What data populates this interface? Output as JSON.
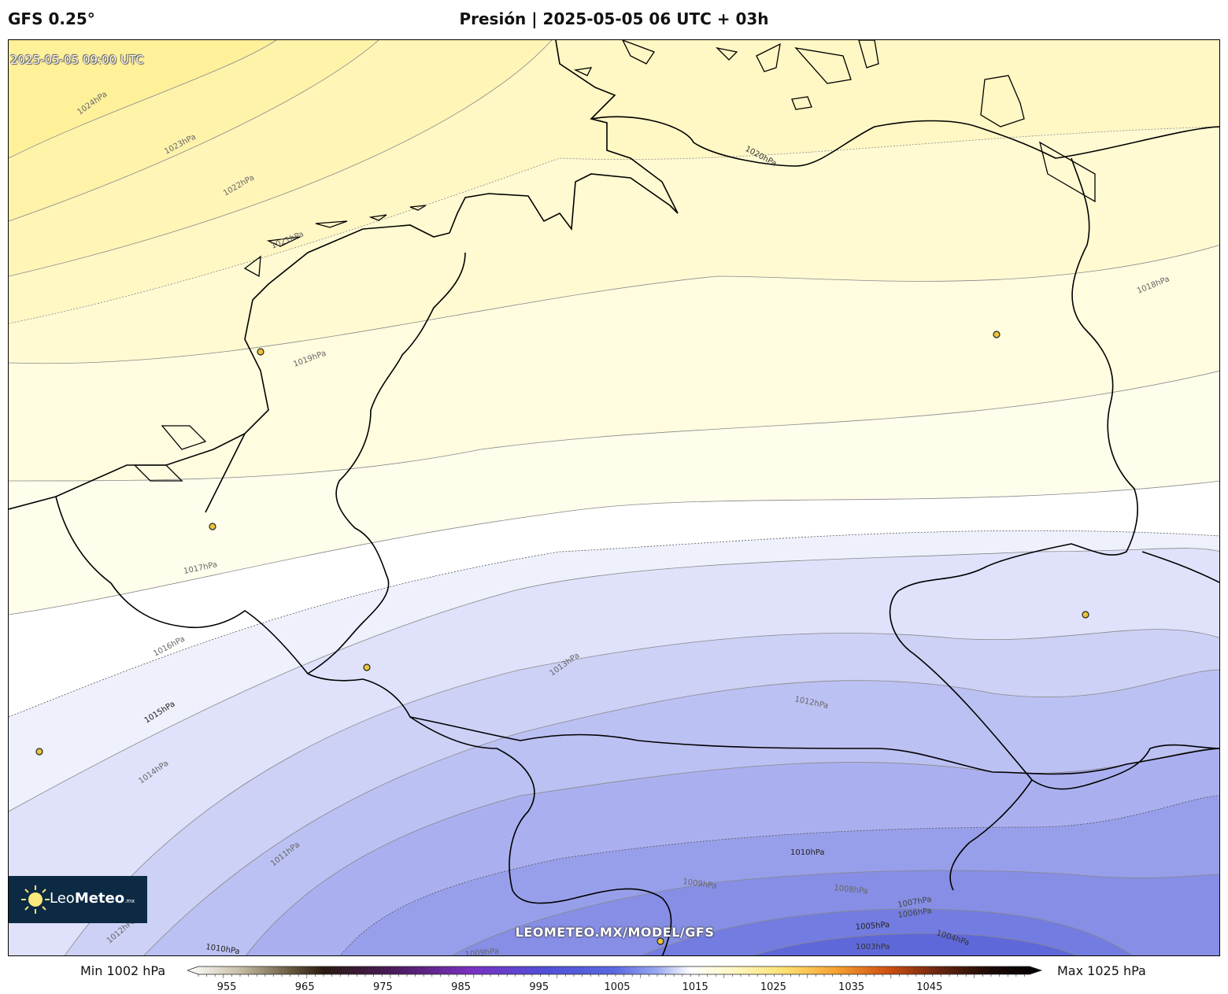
{
  "header": {
    "model": "GFS 0.25°",
    "title": "Presión | 2025-05-05 06 UTC + 03h"
  },
  "map": {
    "valid_time": "2025-05-05 09:00 UTC",
    "watermark": "LEOMETEO.MX/MODEL/GFS",
    "logo": {
      "name_light": "Leo",
      "name_bold": "Meteo",
      "suffix": ".mx"
    },
    "isobar_labels": [
      "1024hPa",
      "1023hPa",
      "1022hPa",
      "1021hPa",
      "1020hPa",
      "1019hPa",
      "1018hPa",
      "1017hPa",
      "1016hPa",
      "1015hPa",
      "1014hPa",
      "1013hPa",
      "1012hPa",
      "1011hPa",
      "1010hPa",
      "1009hPa",
      "1008hPa",
      "1007hPa",
      "1006hPa",
      "1005hPa",
      "1004hPa",
      "1003hPa"
    ]
  },
  "colorbar": {
    "min_label": "Min 1002 hPa",
    "max_label": "Max 1025 hPa",
    "ticks": [
      "955",
      "965",
      "975",
      "985",
      "995",
      "1005",
      "1015",
      "1025",
      "1035",
      "1045"
    ]
  },
  "colors": {
    "high": "#fff1a0",
    "neutral": "#ffffff",
    "low": "#5560e0",
    "coast": "#000000",
    "city_marker": "#e8c43a"
  }
}
